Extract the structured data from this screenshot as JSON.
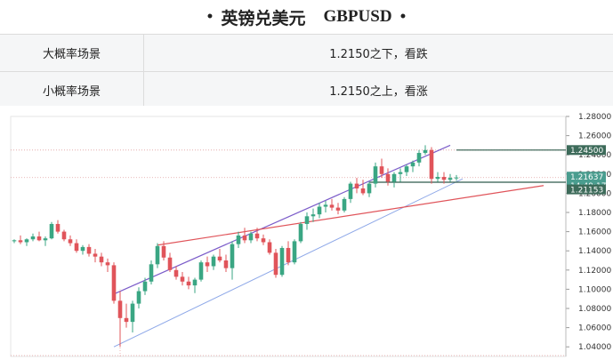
{
  "header": {
    "title": "英镑兑美元",
    "symbol": "GBPUSD",
    "bullet": "•"
  },
  "scenarios": [
    {
      "label": "大概率场景",
      "value": "1.2150之下，看跌"
    },
    {
      "label": "小概率场景",
      "value": "1.2150之上，看涨"
    }
  ],
  "chart_data": {
    "type": "candlestick",
    "instrument": "GBPUSD",
    "ylim": [
      1.03,
      1.28
    ],
    "y_ticks": [
      "1.28000",
      "1.26000",
      "1.24000",
      "1.22000",
      "1.20000",
      "1.18000",
      "1.16000",
      "1.14000",
      "1.12000",
      "1.10000",
      "1.08000",
      "1.06000",
      "1.04000"
    ],
    "price_tags": [
      {
        "label": "1.24500",
        "value": 1.245,
        "color": "#3d6b5a"
      },
      {
        "label": "1.21637",
        "value": 1.21637,
        "color": "#4a9d8f"
      },
      {
        "label": "14:49:17",
        "value": 1.2115,
        "color": "#4a9d8f"
      },
      {
        "label": "1.21153",
        "value": 1.21153,
        "color": "#3d6b5a"
      }
    ],
    "horizontal_levels": [
      1.245,
      1.2115
    ],
    "colors": {
      "up": "#3aa683",
      "down": "#e0545a",
      "channel": "#7b5cc9",
      "support": "#8ea8e8",
      "trend": "#e0545a"
    },
    "candles": [
      [
        1.15,
        1.152,
        1.148,
        1.151
      ],
      [
        1.151,
        1.156,
        1.147,
        1.149
      ],
      [
        1.149,
        1.153,
        1.145,
        1.152
      ],
      [
        1.152,
        1.158,
        1.15,
        1.155
      ],
      [
        1.155,
        1.16,
        1.15,
        1.151
      ],
      [
        1.151,
        1.155,
        1.145,
        1.153
      ],
      [
        1.153,
        1.17,
        1.152,
        1.168
      ],
      [
        1.168,
        1.172,
        1.158,
        1.16
      ],
      [
        1.16,
        1.162,
        1.15,
        1.152
      ],
      [
        1.152,
        1.156,
        1.145,
        1.148
      ],
      [
        1.148,
        1.152,
        1.138,
        1.14
      ],
      [
        1.14,
        1.146,
        1.136,
        1.144
      ],
      [
        1.144,
        1.147,
        1.134,
        1.137
      ],
      [
        1.137,
        1.142,
        1.128,
        1.134
      ],
      [
        1.134,
        1.138,
        1.124,
        1.128
      ],
      [
        1.128,
        1.132,
        1.118,
        1.125
      ],
      [
        1.125,
        1.128,
        1.085,
        1.088
      ],
      [
        1.088,
        1.098,
        1.04,
        1.07
      ],
      [
        1.07,
        1.085,
        1.06,
        1.066
      ],
      [
        1.066,
        1.088,
        1.055,
        1.085
      ],
      [
        1.085,
        1.102,
        1.08,
        1.098
      ],
      [
        1.098,
        1.112,
        1.094,
        1.108
      ],
      [
        1.108,
        1.13,
        1.105,
        1.126
      ],
      [
        1.126,
        1.148,
        1.122,
        1.145
      ],
      [
        1.145,
        1.15,
        1.13,
        1.133
      ],
      [
        1.133,
        1.138,
        1.118,
        1.12
      ],
      [
        1.12,
        1.124,
        1.11,
        1.113
      ],
      [
        1.113,
        1.118,
        1.104,
        1.108
      ],
      [
        1.108,
        1.113,
        1.1,
        1.104
      ],
      [
        1.104,
        1.112,
        1.096,
        1.11
      ],
      [
        1.11,
        1.13,
        1.108,
        1.128
      ],
      [
        1.128,
        1.134,
        1.118,
        1.124
      ],
      [
        1.124,
        1.136,
        1.12,
        1.134
      ],
      [
        1.134,
        1.142,
        1.128,
        1.13
      ],
      [
        1.13,
        1.136,
        1.118,
        1.122
      ],
      [
        1.122,
        1.15,
        1.11,
        1.147
      ],
      [
        1.147,
        1.16,
        1.143,
        1.156
      ],
      [
        1.156,
        1.164,
        1.148,
        1.151
      ],
      [
        1.151,
        1.16,
        1.148,
        1.158
      ],
      [
        1.158,
        1.164,
        1.15,
        1.153
      ],
      [
        1.153,
        1.157,
        1.146,
        1.149
      ],
      [
        1.149,
        1.152,
        1.136,
        1.138
      ],
      [
        1.138,
        1.142,
        1.112,
        1.115
      ],
      [
        1.115,
        1.145,
        1.113,
        1.143
      ],
      [
        1.143,
        1.15,
        1.125,
        1.128
      ],
      [
        1.128,
        1.152,
        1.126,
        1.15
      ],
      [
        1.15,
        1.17,
        1.148,
        1.168
      ],
      [
        1.168,
        1.18,
        1.162,
        1.176
      ],
      [
        1.176,
        1.184,
        1.17,
        1.178
      ],
      [
        1.178,
        1.19,
        1.174,
        1.186
      ],
      [
        1.186,
        1.192,
        1.18,
        1.188
      ],
      [
        1.188,
        1.194,
        1.182,
        1.185
      ],
      [
        1.185,
        1.19,
        1.178,
        1.182
      ],
      [
        1.182,
        1.196,
        1.18,
        1.194
      ],
      [
        1.194,
        1.212,
        1.19,
        1.21
      ],
      [
        1.21,
        1.216,
        1.2,
        1.205
      ],
      [
        1.205,
        1.214,
        1.198,
        1.2
      ],
      [
        1.2,
        1.212,
        1.196,
        1.21
      ],
      [
        1.21,
        1.232,
        1.206,
        1.228
      ],
      [
        1.228,
        1.236,
        1.216,
        1.22
      ],
      [
        1.22,
        1.226,
        1.208,
        1.212
      ],
      [
        1.212,
        1.222,
        1.206,
        1.22
      ],
      [
        1.22,
        1.226,
        1.212,
        1.222
      ],
      [
        1.222,
        1.23,
        1.218,
        1.228
      ],
      [
        1.228,
        1.234,
        1.222,
        1.232
      ],
      [
        1.232,
        1.245,
        1.228,
        1.242
      ],
      [
        1.242,
        1.25,
        1.24,
        1.245
      ],
      [
        1.245,
        1.248,
        1.21,
        1.215
      ],
      [
        1.215,
        1.222,
        1.212,
        1.217
      ],
      [
        1.217,
        1.222,
        1.21,
        1.214
      ],
      [
        1.214,
        1.22,
        1.212,
        1.216
      ],
      [
        1.216,
        1.219,
        1.213,
        1.2164
      ]
    ],
    "channel_top": [
      [
        16,
        1.095
      ],
      [
        70,
        1.25
      ]
    ],
    "channel_bottom": [
      [
        16,
        1.04
      ],
      [
        72,
        1.215
      ]
    ],
    "trend_line": [
      [
        23,
        1.146
      ],
      [
        85,
        1.208
      ]
    ],
    "support_line_level": 1.2115,
    "resistance_line_level": 1.245
  }
}
